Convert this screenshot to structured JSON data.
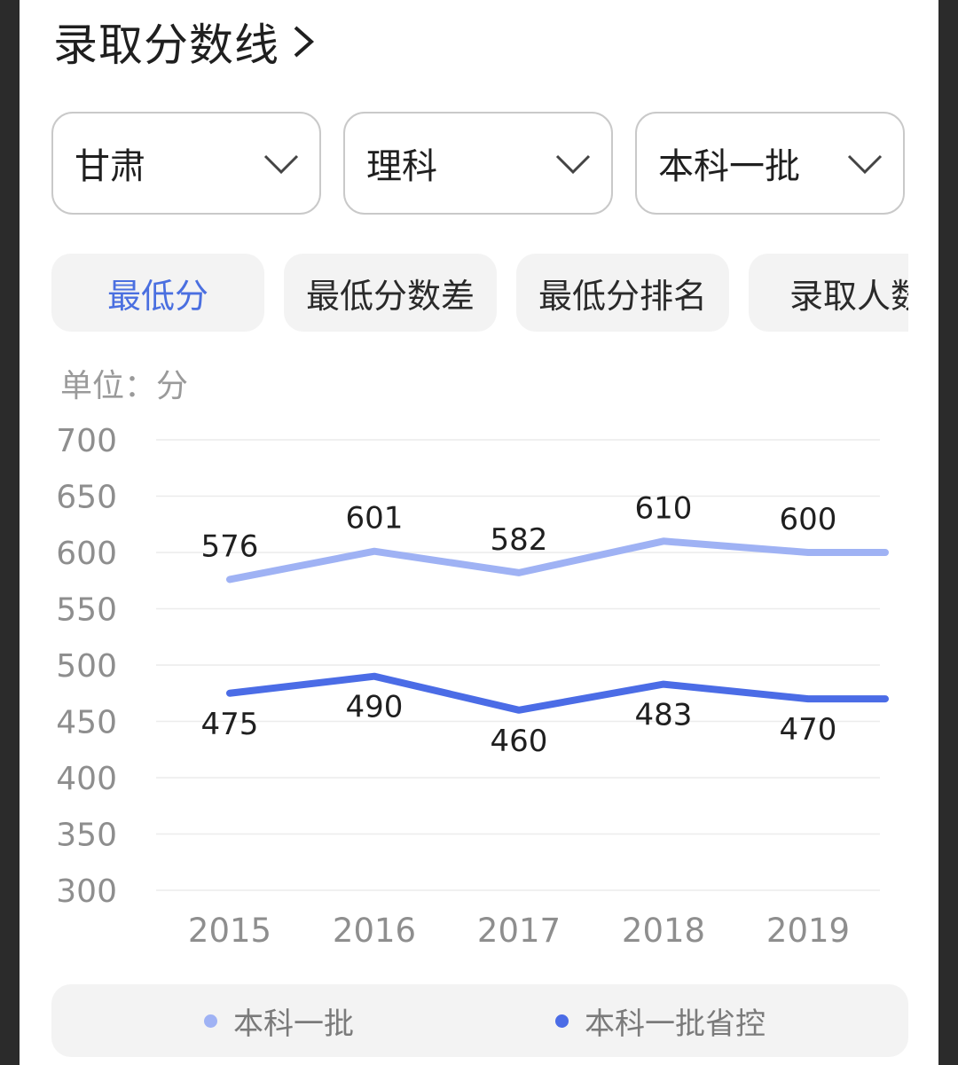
{
  "header": {
    "title": "录取分数线"
  },
  "filters": [
    {
      "label": "甘肃"
    },
    {
      "label": "理科"
    },
    {
      "label": "本科一批"
    }
  ],
  "tabs": [
    {
      "label": "最低分",
      "active": true
    },
    {
      "label": "最低分数差",
      "active": false
    },
    {
      "label": "最低分排名",
      "active": false
    },
    {
      "label": "录取人数",
      "active": false
    }
  ],
  "unit_label": "单位：分",
  "colors": {
    "accent": "#4a6fe0",
    "series_light": "#9fb2f4",
    "series_dark": "#4b6ce6"
  },
  "chart_data": {
    "type": "line",
    "categories": [
      "2015",
      "2016",
      "2017",
      "2018",
      "2019"
    ],
    "series": [
      {
        "name": "本科一批",
        "values": [
          576,
          601,
          582,
          610,
          600
        ],
        "color": "#9fb2f4",
        "extends_right": 600
      },
      {
        "name": "本科一批省控",
        "values": [
          475,
          490,
          460,
          483,
          470
        ],
        "color": "#4b6ce6",
        "extends_right": 470
      }
    ],
    "yticks": [
      700,
      650,
      600,
      550,
      500,
      450,
      400,
      350,
      300
    ],
    "ylim": [
      300,
      700
    ],
    "grid": true,
    "legend_position": "bottom"
  }
}
